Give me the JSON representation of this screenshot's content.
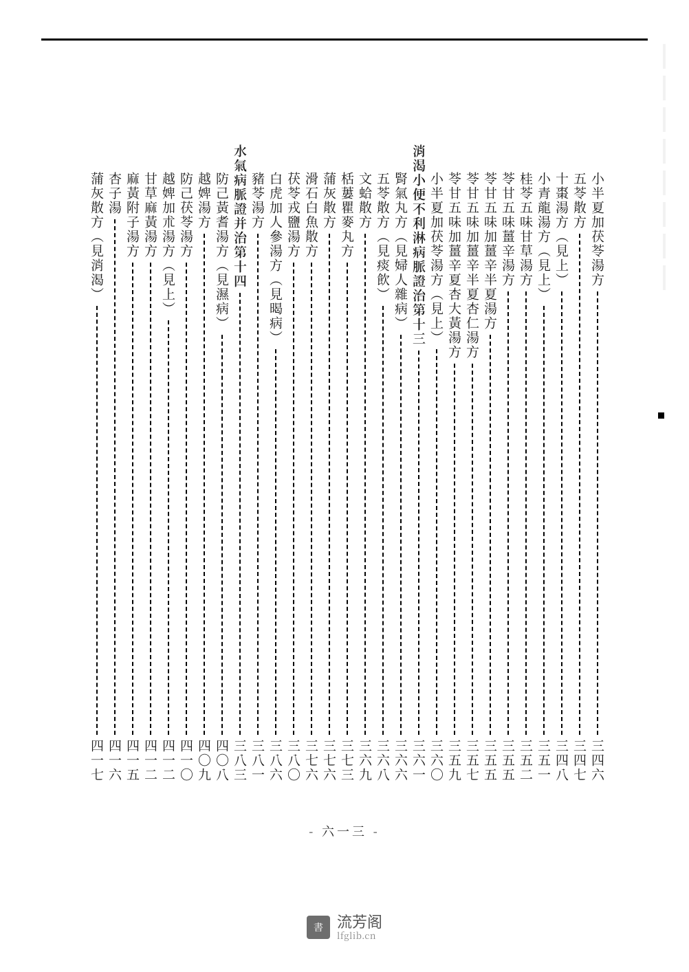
{
  "page_number_label": "- 六一三 -",
  "watermark": {
    "cn": "流芳阁",
    "en": "lfglib.cn",
    "icon": "書"
  },
  "columns": [
    {
      "type": "entry",
      "indent": true,
      "text": "小半夏加茯苓湯方",
      "num": "三四六"
    },
    {
      "type": "entry",
      "indent": true,
      "text": "五苓散方",
      "num": "三四七"
    },
    {
      "type": "entry",
      "indent": true,
      "text": "十棗湯方（見上）",
      "num": "三四八"
    },
    {
      "type": "entry",
      "indent": true,
      "text": "小青龍湯方（見上）",
      "num": "三五一"
    },
    {
      "type": "entry",
      "indent": true,
      "text": "桂苓五味甘草湯方",
      "num": "三五二"
    },
    {
      "type": "entry",
      "indent": true,
      "text": "苓甘五味薑辛湯方",
      "num": "三五五"
    },
    {
      "type": "entry",
      "indent": true,
      "text": "苓甘五味加薑辛半夏湯方",
      "num": "三五五"
    },
    {
      "type": "entry",
      "indent": true,
      "text": "苓甘五味加薑辛半夏杏仁湯方",
      "num": "三五七"
    },
    {
      "type": "entry",
      "indent": true,
      "text": "苓甘五味加薑辛夏杏大黃湯方",
      "num": "三五九"
    },
    {
      "type": "entry",
      "indent": true,
      "text": "小半夏加茯苓湯方（見上）",
      "num": "三六〇"
    },
    {
      "type": "heading",
      "indent": false,
      "text": "消渴小便不利淋病脈證治第十三",
      "num": "三六一"
    },
    {
      "type": "entry",
      "indent": true,
      "text": "腎氣丸方（見婦人雜病）",
      "num": "三六六"
    },
    {
      "type": "entry",
      "indent": true,
      "text": "五苓散方（見痰飲）",
      "num": "三六八"
    },
    {
      "type": "entry",
      "indent": true,
      "text": "文蛤散方",
      "num": "三六九"
    },
    {
      "type": "entry",
      "indent": true,
      "text": "栝蔞瞿麥丸方",
      "num": "三七三"
    },
    {
      "type": "entry",
      "indent": true,
      "text": "蒲灰散方",
      "num": "三七六"
    },
    {
      "type": "entry",
      "indent": true,
      "text": "滑石白魚散方",
      "num": "三七六"
    },
    {
      "type": "entry",
      "indent": true,
      "text": "茯苓戎鹽湯方",
      "num": "三八〇"
    },
    {
      "type": "entry",
      "indent": true,
      "text": "白虎加人參湯方（見暍病）",
      "num": "三八六"
    },
    {
      "type": "entry",
      "indent": true,
      "text": "豬苓湯方",
      "num": "三八一"
    },
    {
      "type": "heading",
      "indent": false,
      "text": "水氣病脈證并治第十四",
      "num": "三八三"
    },
    {
      "type": "entry",
      "indent": true,
      "text": "防己黃耆湯方（見濕病）",
      "num": "四〇八"
    },
    {
      "type": "entry",
      "indent": true,
      "text": "越婢湯方",
      "num": "四〇九"
    },
    {
      "type": "entry",
      "indent": true,
      "text": "防己茯苓湯方",
      "num": "四一〇"
    },
    {
      "type": "entry",
      "indent": true,
      "text": "越婢加朮湯方（見上）",
      "num": "四一二"
    },
    {
      "type": "entry",
      "indent": true,
      "text": "甘草麻黃湯方",
      "num": "四一二"
    },
    {
      "type": "entry",
      "indent": true,
      "text": "麻黃附子湯方",
      "num": "四一五"
    },
    {
      "type": "entry",
      "indent": true,
      "text": "杏子湯",
      "num": "四一六"
    },
    {
      "type": "entry",
      "indent": true,
      "text": "蒲灰散方（見消渴）",
      "num": "四一七"
    }
  ]
}
